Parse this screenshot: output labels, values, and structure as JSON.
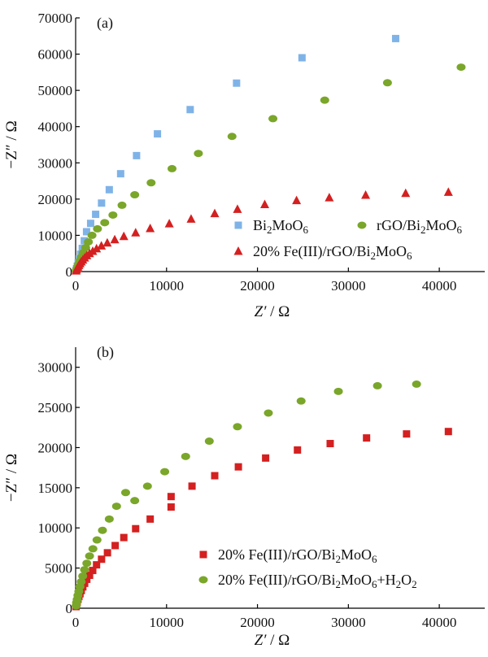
{
  "chart_data": [
    {
      "type": "scatter",
      "panel_label": "(a)",
      "xlabel_italic": "Z′",
      "xlabel_unit": " / Ω",
      "ylabel": "−Z″ / Ω",
      "xlim": [
        0,
        45000
      ],
      "ylim": [
        0,
        70000
      ],
      "xticks": [
        0,
        10000,
        20000,
        30000,
        40000
      ],
      "yticks": [
        0,
        10000,
        20000,
        30000,
        40000,
        50000,
        60000,
        70000
      ],
      "grid": false,
      "legend_placement": "bottom-right",
      "series": [
        {
          "name": "Bi₂MoO₆",
          "marker": "square",
          "color": "#7fb3e8",
          "points": [
            [
              50,
              300
            ],
            [
              100,
              800
            ],
            [
              180,
              1500
            ],
            [
              280,
              2400
            ],
            [
              400,
              3500
            ],
            [
              550,
              4800
            ],
            [
              730,
              6400
            ],
            [
              950,
              8500
            ],
            [
              1200,
              11000
            ],
            [
              1650,
              13300
            ],
            [
              2200,
              15800
            ],
            [
              2850,
              18900
            ],
            [
              3700,
              22600
            ],
            [
              4950,
              27000
            ],
            [
              6700,
              32000
            ],
            [
              9000,
              38000
            ],
            [
              12600,
              44700
            ],
            [
              17700,
              52000
            ],
            [
              24900,
              59000
            ],
            [
              35200,
              64300
            ]
          ]
        },
        {
          "name": "rGO/Bi₂MoO₆",
          "marker": "ellipse",
          "color": "#7aa62a",
          "points": [
            [
              60,
              300
            ],
            [
              130,
              700
            ],
            [
              220,
              1300
            ],
            [
              330,
              2100
            ],
            [
              470,
              3000
            ],
            [
              640,
              4000
            ],
            [
              850,
              5200
            ],
            [
              1100,
              6600
            ],
            [
              1400,
              8200
            ],
            [
              1800,
              10000
            ],
            [
              2400,
              11800
            ],
            [
              3200,
              13500
            ],
            [
              4100,
              15600
            ],
            [
              5100,
              18300
            ],
            [
              6500,
              21200
            ],
            [
              8300,
              24500
            ],
            [
              10600,
              28400
            ],
            [
              13500,
              32600
            ],
            [
              17200,
              37300
            ],
            [
              21700,
              42200
            ],
            [
              27400,
              47300
            ],
            [
              34300,
              52100
            ],
            [
              42400,
              56400
            ]
          ]
        },
        {
          "name": "20% Fe(III)/rGO/Bi₂MoO₆",
          "marker": "triangle",
          "color": "#d42020",
          "points": [
            [
              50,
              200
            ],
            [
              100,
              500
            ],
            [
              170,
              900
            ],
            [
              260,
              1300
            ],
            [
              360,
              1700
            ],
            [
              480,
              2200
            ],
            [
              620,
              2700
            ],
            [
              790,
              3200
            ],
            [
              990,
              3800
            ],
            [
              1230,
              4400
            ],
            [
              1530,
              5000
            ],
            [
              1880,
              5600
            ],
            [
              2300,
              6300
            ],
            [
              2830,
              7100
            ],
            [
              3480,
              7900
            ],
            [
              4300,
              8800
            ],
            [
              5300,
              9700
            ],
            [
              6600,
              10700
            ],
            [
              8200,
              11900
            ],
            [
              10300,
              13200
            ],
            [
              12700,
              14500
            ],
            [
              15300,
              16000
            ],
            [
              17800,
              17200
            ],
            [
              20800,
              18500
            ],
            [
              24300,
              19600
            ],
            [
              27900,
              20400
            ],
            [
              31900,
              21100
            ],
            [
              36300,
              21600
            ],
            [
              41000,
              21900
            ]
          ]
        }
      ]
    },
    {
      "type": "scatter",
      "panel_label": "(b)",
      "xlabel_italic": "Z′",
      "xlabel_unit": " / Ω",
      "ylabel": "−Z″ / Ω",
      "xlim": [
        0,
        45000
      ],
      "ylim": [
        0,
        32500
      ],
      "xticks": [
        0,
        10000,
        20000,
        30000,
        40000
      ],
      "yticks": [
        0,
        5000,
        10000,
        15000,
        20000,
        25000,
        30000
      ],
      "grid": false,
      "legend_placement": "bottom-right",
      "series": [
        {
          "name": "20% Fe(III)/rGO/Bi₂MoO₆",
          "marker": "square",
          "color": "#d42020",
          "points": [
            [
              50,
              200
            ],
            [
              100,
              450
            ],
            [
              170,
              750
            ],
            [
              260,
              1100
            ],
            [
              360,
              1450
            ],
            [
              480,
              1800
            ],
            [
              620,
              2200
            ],
            [
              790,
              2650
            ],
            [
              990,
              3100
            ],
            [
              1230,
              3600
            ],
            [
              1530,
              4100
            ],
            [
              1880,
              4700
            ],
            [
              2300,
              5400
            ],
            [
              2850,
              6100
            ],
            [
              3500,
              6900
            ],
            [
              4350,
              7800
            ],
            [
              5300,
              8800
            ],
            [
              6600,
              9900
            ],
            [
              8200,
              11100
            ],
            [
              10500,
              12600
            ],
            [
              10500,
              13900
            ],
            [
              12800,
              15200
            ],
            [
              15300,
              16500
            ],
            [
              17900,
              17600
            ],
            [
              20900,
              18700
            ],
            [
              24400,
              19700
            ],
            [
              28000,
              20500
            ],
            [
              32000,
              21200
            ],
            [
              36400,
              21700
            ],
            [
              41000,
              22000
            ]
          ]
        },
        {
          "name": "20% Fe(III)/rGO/Bi₂MoO₆+H₂O₂",
          "marker": "ellipse",
          "color": "#7aa62a",
          "points": [
            [
              50,
              300
            ],
            [
              100,
              700
            ],
            [
              170,
              1100
            ],
            [
              250,
              1600
            ],
            [
              350,
              2100
            ],
            [
              470,
              2700
            ],
            [
              610,
              3300
            ],
            [
              780,
              4000
            ],
            [
              980,
              4800
            ],
            [
              1230,
              5600
            ],
            [
              1530,
              6500
            ],
            [
              1900,
              7400
            ],
            [
              2350,
              8500
            ],
            [
              2950,
              9700
            ],
            [
              3700,
              11100
            ],
            [
              4500,
              12700
            ],
            [
              5500,
              14400
            ],
            [
              6500,
              13400
            ],
            [
              7900,
              15200
            ],
            [
              9800,
              17000
            ],
            [
              12100,
              18900
            ],
            [
              14700,
              20800
            ],
            [
              17800,
              22600
            ],
            [
              21200,
              24300
            ],
            [
              24800,
              25800
            ],
            [
              28900,
              27000
            ],
            [
              33200,
              27700
            ],
            [
              37500,
              27900
            ]
          ]
        }
      ]
    }
  ]
}
